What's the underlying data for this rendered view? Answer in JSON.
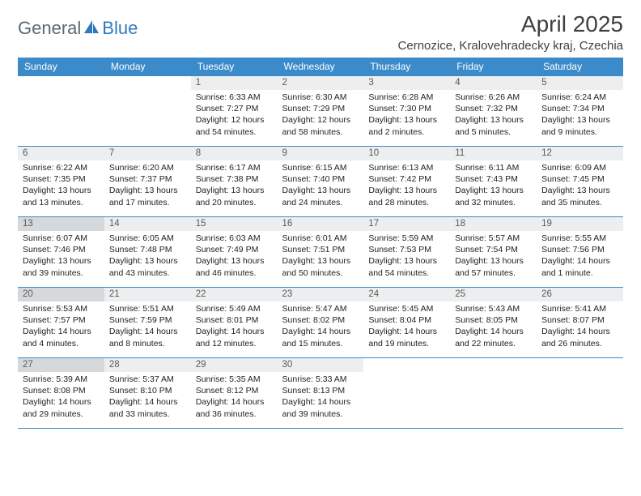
{
  "brand": {
    "general": "General",
    "blue": "Blue"
  },
  "title": "April 2025",
  "location": "Cernozice, Kralovehradecky kraj, Czechia",
  "colors": {
    "header_bg": "#3b8bca",
    "header_text": "#ffffff",
    "daynum_bg": "#eceeef",
    "daynum_shade_bg": "#d6d9db",
    "border": "#3b8bca",
    "logo_gray": "#5a6a78",
    "logo_blue": "#2e78bd",
    "title_color": "#404040"
  },
  "weekdays": [
    "Sunday",
    "Monday",
    "Tuesday",
    "Wednesday",
    "Thursday",
    "Friday",
    "Saturday"
  ],
  "weeks": [
    [
      {
        "day": "",
        "sunrise": "",
        "sunset": "",
        "daylight": "",
        "shade": false,
        "empty": true
      },
      {
        "day": "",
        "sunrise": "",
        "sunset": "",
        "daylight": "",
        "shade": false,
        "empty": true
      },
      {
        "day": "1",
        "sunrise": "Sunrise: 6:33 AM",
        "sunset": "Sunset: 7:27 PM",
        "daylight": "Daylight: 12 hours and 54 minutes.",
        "shade": false
      },
      {
        "day": "2",
        "sunrise": "Sunrise: 6:30 AM",
        "sunset": "Sunset: 7:29 PM",
        "daylight": "Daylight: 12 hours and 58 minutes.",
        "shade": false
      },
      {
        "day": "3",
        "sunrise": "Sunrise: 6:28 AM",
        "sunset": "Sunset: 7:30 PM",
        "daylight": "Daylight: 13 hours and 2 minutes.",
        "shade": false
      },
      {
        "day": "4",
        "sunrise": "Sunrise: 6:26 AM",
        "sunset": "Sunset: 7:32 PM",
        "daylight": "Daylight: 13 hours and 5 minutes.",
        "shade": false
      },
      {
        "day": "5",
        "sunrise": "Sunrise: 6:24 AM",
        "sunset": "Sunset: 7:34 PM",
        "daylight": "Daylight: 13 hours and 9 minutes.",
        "shade": false
      }
    ],
    [
      {
        "day": "6",
        "sunrise": "Sunrise: 6:22 AM",
        "sunset": "Sunset: 7:35 PM",
        "daylight": "Daylight: 13 hours and 13 minutes.",
        "shade": false
      },
      {
        "day": "7",
        "sunrise": "Sunrise: 6:20 AM",
        "sunset": "Sunset: 7:37 PM",
        "daylight": "Daylight: 13 hours and 17 minutes.",
        "shade": false
      },
      {
        "day": "8",
        "sunrise": "Sunrise: 6:17 AM",
        "sunset": "Sunset: 7:38 PM",
        "daylight": "Daylight: 13 hours and 20 minutes.",
        "shade": false
      },
      {
        "day": "9",
        "sunrise": "Sunrise: 6:15 AM",
        "sunset": "Sunset: 7:40 PM",
        "daylight": "Daylight: 13 hours and 24 minutes.",
        "shade": false
      },
      {
        "day": "10",
        "sunrise": "Sunrise: 6:13 AM",
        "sunset": "Sunset: 7:42 PM",
        "daylight": "Daylight: 13 hours and 28 minutes.",
        "shade": false
      },
      {
        "day": "11",
        "sunrise": "Sunrise: 6:11 AM",
        "sunset": "Sunset: 7:43 PM",
        "daylight": "Daylight: 13 hours and 32 minutes.",
        "shade": false
      },
      {
        "day": "12",
        "sunrise": "Sunrise: 6:09 AM",
        "sunset": "Sunset: 7:45 PM",
        "daylight": "Daylight: 13 hours and 35 minutes.",
        "shade": false
      }
    ],
    [
      {
        "day": "13",
        "sunrise": "Sunrise: 6:07 AM",
        "sunset": "Sunset: 7:46 PM",
        "daylight": "Daylight: 13 hours and 39 minutes.",
        "shade": true
      },
      {
        "day": "14",
        "sunrise": "Sunrise: 6:05 AM",
        "sunset": "Sunset: 7:48 PM",
        "daylight": "Daylight: 13 hours and 43 minutes.",
        "shade": false
      },
      {
        "day": "15",
        "sunrise": "Sunrise: 6:03 AM",
        "sunset": "Sunset: 7:49 PM",
        "daylight": "Daylight: 13 hours and 46 minutes.",
        "shade": false
      },
      {
        "day": "16",
        "sunrise": "Sunrise: 6:01 AM",
        "sunset": "Sunset: 7:51 PM",
        "daylight": "Daylight: 13 hours and 50 minutes.",
        "shade": false
      },
      {
        "day": "17",
        "sunrise": "Sunrise: 5:59 AM",
        "sunset": "Sunset: 7:53 PM",
        "daylight": "Daylight: 13 hours and 54 minutes.",
        "shade": false
      },
      {
        "day": "18",
        "sunrise": "Sunrise: 5:57 AM",
        "sunset": "Sunset: 7:54 PM",
        "daylight": "Daylight: 13 hours and 57 minutes.",
        "shade": false
      },
      {
        "day": "19",
        "sunrise": "Sunrise: 5:55 AM",
        "sunset": "Sunset: 7:56 PM",
        "daylight": "Daylight: 14 hours and 1 minute.",
        "shade": false
      }
    ],
    [
      {
        "day": "20",
        "sunrise": "Sunrise: 5:53 AM",
        "sunset": "Sunset: 7:57 PM",
        "daylight": "Daylight: 14 hours and 4 minutes.",
        "shade": true
      },
      {
        "day": "21",
        "sunrise": "Sunrise: 5:51 AM",
        "sunset": "Sunset: 7:59 PM",
        "daylight": "Daylight: 14 hours and 8 minutes.",
        "shade": false
      },
      {
        "day": "22",
        "sunrise": "Sunrise: 5:49 AM",
        "sunset": "Sunset: 8:01 PM",
        "daylight": "Daylight: 14 hours and 12 minutes.",
        "shade": false
      },
      {
        "day": "23",
        "sunrise": "Sunrise: 5:47 AM",
        "sunset": "Sunset: 8:02 PM",
        "daylight": "Daylight: 14 hours and 15 minutes.",
        "shade": false
      },
      {
        "day": "24",
        "sunrise": "Sunrise: 5:45 AM",
        "sunset": "Sunset: 8:04 PM",
        "daylight": "Daylight: 14 hours and 19 minutes.",
        "shade": false
      },
      {
        "day": "25",
        "sunrise": "Sunrise: 5:43 AM",
        "sunset": "Sunset: 8:05 PM",
        "daylight": "Daylight: 14 hours and 22 minutes.",
        "shade": false
      },
      {
        "day": "26",
        "sunrise": "Sunrise: 5:41 AM",
        "sunset": "Sunset: 8:07 PM",
        "daylight": "Daylight: 14 hours and 26 minutes.",
        "shade": false
      }
    ],
    [
      {
        "day": "27",
        "sunrise": "Sunrise: 5:39 AM",
        "sunset": "Sunset: 8:08 PM",
        "daylight": "Daylight: 14 hours and 29 minutes.",
        "shade": true
      },
      {
        "day": "28",
        "sunrise": "Sunrise: 5:37 AM",
        "sunset": "Sunset: 8:10 PM",
        "daylight": "Daylight: 14 hours and 33 minutes.",
        "shade": false
      },
      {
        "day": "29",
        "sunrise": "Sunrise: 5:35 AM",
        "sunset": "Sunset: 8:12 PM",
        "daylight": "Daylight: 14 hours and 36 minutes.",
        "shade": false
      },
      {
        "day": "30",
        "sunrise": "Sunrise: 5:33 AM",
        "sunset": "Sunset: 8:13 PM",
        "daylight": "Daylight: 14 hours and 39 minutes.",
        "shade": false
      },
      {
        "day": "",
        "sunrise": "",
        "sunset": "",
        "daylight": "",
        "shade": false,
        "empty": true
      },
      {
        "day": "",
        "sunrise": "",
        "sunset": "",
        "daylight": "",
        "shade": false,
        "empty": true
      },
      {
        "day": "",
        "sunrise": "",
        "sunset": "",
        "daylight": "",
        "shade": false,
        "empty": true
      }
    ]
  ]
}
